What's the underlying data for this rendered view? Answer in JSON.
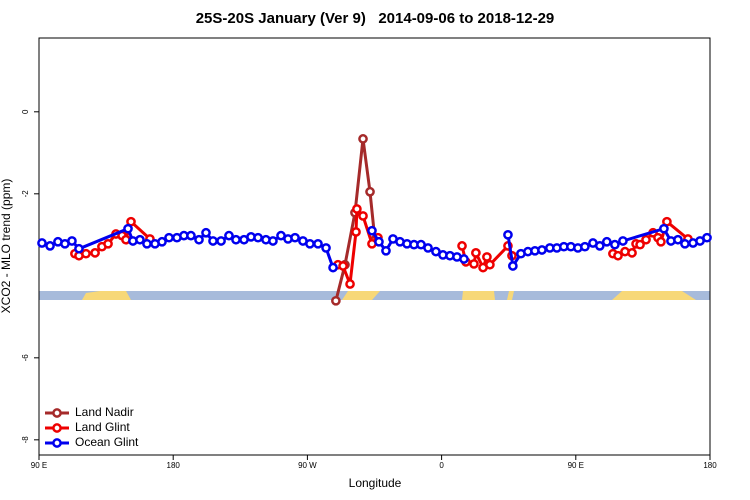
{
  "chart_data": {
    "type": "line",
    "title": "25S-20S January (Ver 9)   2014-09-06 to 2018-12-29",
    "x_label": "Longitude",
    "y_label": "XCO2 - MLO trend (ppm)",
    "xlim": [
      90,
      540
    ],
    "xticks": [
      {
        "value": 90,
        "label": "90 E"
      },
      {
        "value": 180,
        "label": "180"
      },
      {
        "value": 270,
        "label": "90 W"
      },
      {
        "value": 360,
        "label": "0"
      },
      {
        "value": 450,
        "label": "90 E"
      },
      {
        "value": 540,
        "label": "180"
      }
    ],
    "ylim": [
      -8.37,
      1.8
    ],
    "yticks": [
      0,
      -2,
      -6,
      -8
    ],
    "legend": "bottom-left",
    "series": [
      {
        "name": "Land Nadir",
        "color": "#a52a2a",
        "x": [
          289.1,
          295.2,
          301.9,
          307.3,
          312.0,
          315.3
        ],
        "values": [
          -4.61,
          -3.73,
          -2.46,
          -0.66,
          -1.95,
          -3.12
        ]
      },
      {
        "name": "Land Glint",
        "color": "#ee0000",
        "x": [
          114.1,
          116.8,
          121.5,
          127.6,
          132.2,
          136.3,
          141.6,
          145.7,
          148.3,
          151.7,
          164.4,
          null,
          290.5,
          293.9,
          298.6,
          302.6,
          303.2,
          307.3,
          313.3,
          317.3,
          null,
          373.7,
          376.3,
          381.7,
          383.0,
          387.8,
          390.4,
          392.4,
          404.5,
          407.2,
          null,
          474.9,
          478.3,
          483.0,
          487.7,
          490.4,
          493.1,
          497.1,
          501.8,
          505.1,
          507.1,
          511.1,
          525.2
        ],
        "values": [
          -3.46,
          -3.51,
          -3.46,
          -3.44,
          -3.29,
          -3.22,
          -2.98,
          -3.02,
          -3.12,
          -2.68,
          -3.1,
          null,
          -3.73,
          -3.76,
          -4.2,
          -2.93,
          -2.37,
          -2.54,
          -3.22,
          -3.07,
          null,
          -3.27,
          -3.66,
          -3.71,
          -3.44,
          -3.8,
          -3.54,
          -3.73,
          -3.27,
          -3.51,
          null,
          -3.46,
          -3.51,
          -3.41,
          -3.44,
          -3.22,
          -3.24,
          -3.12,
          -2.95,
          -3.07,
          -3.17,
          -2.68,
          -3.1
        ]
      },
      {
        "name": "Ocean Glint",
        "color": "#0000ee",
        "x": [
          92.0,
          97.4,
          102.7,
          107.4,
          112.1,
          116.8,
          149.7,
          153.0,
          157.7,
          162.4,
          167.8,
          172.5,
          177.2,
          182.5,
          187.2,
          191.9,
          197.3,
          202.0,
          206.7,
          212.1,
          217.4,
          222.1,
          227.5,
          232.2,
          236.9,
          242.2,
          246.9,
          252.3,
          257.0,
          261.7,
          267.0,
          271.7,
          277.1,
          282.5,
          287.2,
          null,
          313.3,
          318.0,
          322.7,
          327.4,
          332.1,
          336.8,
          341.5,
          346.2,
          350.9,
          356.2,
          360.9,
          365.6,
          370.3,
          375.0,
          null,
          404.5,
          407.8,
          413.2,
          417.9,
          422.6,
          427.3,
          432.6,
          437.3,
          442.0,
          446.7,
          451.4,
          456.1,
          461.5,
          466.1,
          470.8,
          476.2,
          481.6,
          509.1,
          513.8,
          518.5,
          523.2,
          528.6,
          533.3,
          538.0
        ],
        "values": [
          -3.2,
          -3.27,
          -3.17,
          -3.22,
          -3.15,
          -3.34,
          -2.85,
          -3.15,
          -3.12,
          -3.22,
          -3.22,
          -3.17,
          -3.07,
          -3.07,
          -3.02,
          -3.02,
          -3.12,
          -2.95,
          -3.15,
          -3.15,
          -3.02,
          -3.12,
          -3.12,
          -3.05,
          -3.07,
          -3.12,
          -3.15,
          -3.02,
          -3.1,
          -3.07,
          -3.15,
          -3.22,
          -3.22,
          -3.32,
          -3.8,
          null,
          -2.9,
          -3.17,
          -3.39,
          -3.1,
          -3.17,
          -3.22,
          -3.24,
          -3.24,
          -3.32,
          -3.41,
          -3.49,
          -3.51,
          -3.54,
          -3.59,
          null,
          -3.0,
          -3.76,
          -3.46,
          -3.41,
          -3.39,
          -3.37,
          -3.32,
          -3.32,
          -3.29,
          -3.29,
          -3.32,
          -3.29,
          -3.2,
          -3.27,
          -3.17,
          -3.24,
          -3.15,
          -2.85,
          -3.15,
          -3.12,
          -3.22,
          -3.2,
          -3.15,
          -3.07
        ]
      }
    ]
  }
}
